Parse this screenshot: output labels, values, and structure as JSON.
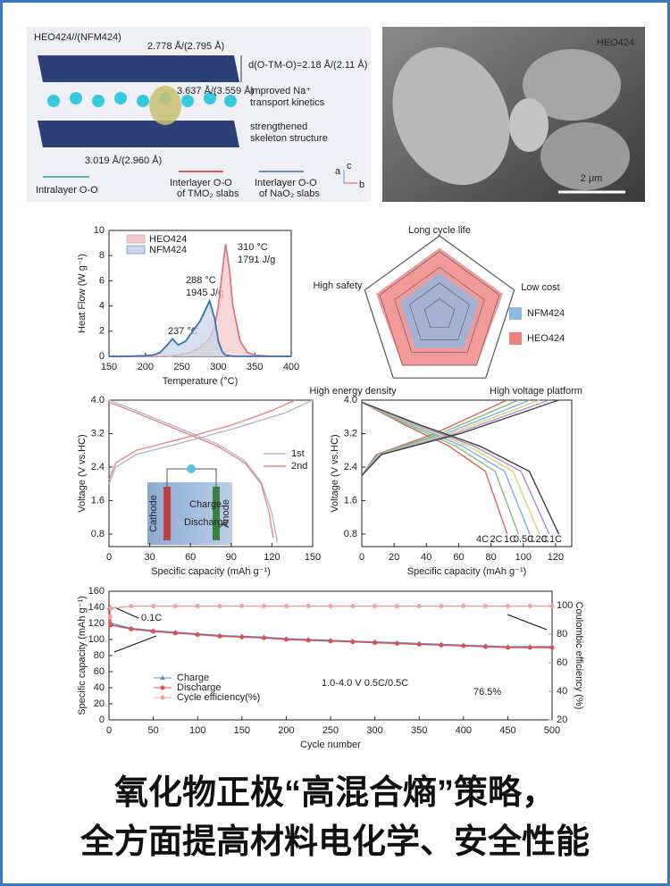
{
  "structure_panel": {
    "title": "HEO424//(NFM424)",
    "labels": [
      "2.778 Å/(2.795 Å)",
      "d(O-TM-O)=2.18 Å/(2.11 Å)",
      "3.637 Å/(3.559 Å)",
      "improved Na⁺",
      "transport kinetics",
      "strengthened",
      "skeleton structure",
      "3.019 Å/(2.960 Å)"
    ],
    "legend": [
      "Intralayer O-O",
      "Interlayer O-O",
      "of TMO₂ slabs",
      "Interlayer O-O",
      "of NaO₂ slabs"
    ],
    "axes": [
      "a",
      "b",
      "c"
    ]
  },
  "sem_panel": {
    "label": "HEO424",
    "scale_bar": "2 μm"
  },
  "chart_data": [
    {
      "type": "area",
      "x": [
        150,
        175,
        200,
        210,
        220,
        230,
        237,
        245,
        255,
        265,
        275,
        288,
        295,
        300,
        305,
        310,
        315,
        320,
        330,
        340,
        350,
        375,
        400
      ],
      "series": [
        {
          "name": "HEO424",
          "color": "#e07a80",
          "fill": "#f6c9cb",
          "values": [
            0,
            0,
            0,
            0,
            0,
            0,
            0.05,
            0.1,
            0.2,
            0.4,
            0.7,
            1.4,
            2.4,
            4.0,
            6.5,
            8.9,
            7.0,
            4.0,
            1.2,
            0.3,
            0.1,
            0,
            0
          ]
        },
        {
          "name": "NFM424",
          "color": "#3b6fb6",
          "fill": "#c9d6e8",
          "values": [
            0,
            0,
            0.05,
            0.1,
            0.3,
            0.9,
            1.4,
            0.9,
            1.2,
            2.0,
            2.8,
            4.4,
            3.0,
            1.2,
            0.4,
            0.1,
            0.05,
            0,
            0,
            0,
            0,
            0,
            0
          ]
        }
      ],
      "xlim": [
        150,
        400
      ],
      "xticks": [
        150,
        200,
        250,
        300,
        350,
        400
      ],
      "ylim": [
        0,
        10
      ],
      "yticks": [
        0,
        2,
        4,
        6,
        8,
        10
      ],
      "xlabel": "Temperature (°C)",
      "ylabel": "Heat Flow (W g⁻¹)",
      "annotations": [
        "237 °C",
        "288 °C",
        "1945 J/g",
        "310 °C",
        "1791 J/g"
      ],
      "legend": "upper left"
    },
    {
      "type": "radar",
      "axes": [
        "Long cycle life",
        "Low cost",
        "High voltage platform",
        "High energy density",
        "High safety"
      ],
      "rlim": [
        0,
        5
      ],
      "rticks": [
        1,
        2,
        3,
        4,
        5
      ],
      "series": [
        {
          "name": "NFM424",
          "color": "#8fb8e3",
          "values": [
            2.6,
            2.6,
            2.6,
            2.6,
            2.6
          ]
        },
        {
          "name": "HEO424",
          "color": "#f08080",
          "values": [
            4.2,
            4.2,
            4.0,
            4.0,
            4.2
          ]
        }
      ],
      "legend": "right"
    },
    {
      "type": "line",
      "series": [
        {
          "name": "1st",
          "color": "#b8b8c8",
          "x": [
            0,
            5,
            20,
            50,
            90,
            130,
            150,
            null,
            0,
            20,
            50,
            80,
            100,
            112,
            120,
            124
          ],
          "values": [
            2.0,
            2.4,
            2.7,
            2.95,
            3.3,
            3.7,
            4.0,
            null,
            4.0,
            3.75,
            3.35,
            2.95,
            2.55,
            2.05,
            1.3,
            0.6
          ]
        },
        {
          "name": "2nd",
          "color": "#e88a8a",
          "x": [
            0,
            5,
            20,
            50,
            90,
            120,
            137,
            null,
            0,
            20,
            50,
            80,
            100,
            112,
            118,
            121
          ],
          "values": [
            2.1,
            2.5,
            2.8,
            3.05,
            3.4,
            3.75,
            4.0,
            null,
            3.95,
            3.7,
            3.3,
            2.9,
            2.5,
            2.0,
            1.3,
            0.7
          ]
        }
      ],
      "xlim": [
        0,
        150
      ],
      "xticks": [
        0,
        30,
        60,
        90,
        120,
        150
      ],
      "ylim": [
        0.5,
        4
      ],
      "yticks": [
        0.8,
        1.6,
        2.4,
        3.2,
        {
          "value": 4,
          "label": "4.0"
        }
      ],
      "xlabel": "Specific capacity (mAh g⁻¹)",
      "ylabel": "Voltage (V vs.HC)",
      "inset_labels": [
        "Cathode",
        "Charge",
        "Discharge",
        "Anode"
      ],
      "legend": "upper right"
    },
    {
      "type": "line",
      "series": [
        {
          "name": "4C",
          "color": "#e06060",
          "x": [
            0,
            9,
            45,
            90,
            null,
            0,
            27,
            54,
            76.5,
            90
          ],
          "values": [
            2.2,
            2.7,
            3.2,
            4.0,
            null,
            3.95,
            3.4,
            2.9,
            2.3,
            0.8
          ]
        },
        {
          "name": "2C",
          "color": "#7cc07c",
          "x": [
            0,
            9.7,
            48.5,
            97,
            null,
            0,
            29.1,
            58.2,
            82.5,
            97
          ],
          "values": [
            2.2,
            2.7,
            3.2,
            4.0,
            null,
            3.95,
            3.4,
            2.9,
            2.3,
            0.8
          ]
        },
        {
          "name": "1C",
          "color": "#7fb0e6",
          "x": [
            0,
            10.4,
            52,
            104,
            null,
            0,
            31.2,
            62.4,
            88.4,
            104
          ],
          "values": [
            2.2,
            2.7,
            3.2,
            4.0,
            null,
            3.95,
            3.4,
            2.9,
            2.3,
            0.8
          ]
        },
        {
          "name": "0.5C",
          "color": "#d6d86a",
          "x": [
            0,
            11,
            55,
            110,
            null,
            0,
            33,
            66,
            93.5,
            110
          ],
          "values": [
            2.2,
            2.7,
            3.2,
            4.0,
            null,
            3.95,
            3.4,
            2.9,
            2.3,
            0.8
          ]
        },
        {
          "name": "0.2C",
          "color": "#b08ad0",
          "x": [
            0,
            11.6,
            58,
            116,
            null,
            0,
            34.8,
            69.6,
            98.6,
            116
          ],
          "values": [
            2.2,
            2.7,
            3.2,
            4.0,
            null,
            3.95,
            3.4,
            2.9,
            2.3,
            0.8
          ]
        },
        {
          "name": "0.1C",
          "color": "#404040",
          "x": [
            0,
            12.2,
            61,
            122,
            null,
            0,
            36.6,
            73.2,
            103.7,
            122
          ],
          "values": [
            2.2,
            2.7,
            3.2,
            4.0,
            null,
            3.95,
            3.4,
            2.9,
            2.3,
            0.8
          ]
        }
      ],
      "xlim": [
        0,
        130
      ],
      "xticks": [
        0,
        20,
        40,
        60,
        80,
        100,
        120
      ],
      "ylim": [
        0.5,
        4
      ],
      "yticks": [
        0.8,
        1.6,
        2.4,
        3.2,
        {
          "value": 4,
          "label": "4.0"
        }
      ],
      "xlabel": "Specific capacity (mAh g⁻¹)",
      "ylabel": "Voltage (V vs.HC)",
      "legend": "lower right"
    },
    {
      "type": "line",
      "markers": true,
      "x": [
        1,
        2,
        25,
        50,
        75,
        100,
        125,
        150,
        175,
        200,
        225,
        250,
        275,
        300,
        325,
        350,
        375,
        400,
        425,
        450,
        475,
        500
      ],
      "series": [
        {
          "name": "Charge",
          "color": "#5b8fd0",
          "marker": "triangle",
          "values": [
            140,
            120,
            114,
            111,
            109,
            107,
            105,
            104,
            103,
            101,
            100,
            99,
            98,
            97,
            96,
            95,
            94,
            93,
            92,
            91,
            91,
            91
          ]
        },
        {
          "name": "Discharge",
          "color": "#e05050",
          "marker": "circle",
          "values": [
            138,
            118,
            113,
            110,
            108,
            106,
            104,
            103,
            102,
            100,
            99,
            98,
            97,
            96,
            95,
            94,
            93,
            92,
            91,
            90,
            90,
            90
          ]
        },
        {
          "name": "Cycle efficiency(%)",
          "color": "#f0a0a0",
          "marker": "circle",
          "axis": "y2",
          "values": [
            92,
            98,
            99.6,
            99.6,
            99.6,
            99.6,
            99.6,
            99.6,
            99.6,
            99.6,
            99.6,
            99.6,
            99.6,
            99.6,
            99.6,
            99.6,
            99.6,
            99.6,
            99.6,
            99.6,
            99.6,
            99.6
          ]
        }
      ],
      "xlim": [
        0,
        500
      ],
      "xticks": [
        0,
        50,
        100,
        150,
        200,
        250,
        300,
        350,
        400,
        450,
        500
      ],
      "ylim": [
        0,
        160
      ],
      "yticks": [
        0,
        20,
        40,
        60,
        80,
        100,
        120,
        140,
        160
      ],
      "y2lim": [
        20,
        110
      ],
      "y2ticks": [
        20,
        40,
        60,
        80,
        100
      ],
      "y2color": "#f08080",
      "xlabel": "Cycle number",
      "ylabel": "Specific capacity (mAh g⁻¹)",
      "y2label": "Coulombic efficiency (%)",
      "annotations": [
        "0.1C",
        "1.0-4.0 V 0.5C/0.5C",
        "76.5%"
      ],
      "legend": "lower left"
    }
  ],
  "headline": [
    "氧化物正极“高混合熵”策略，",
    "全方面提高材料电化学、安全性能"
  ]
}
